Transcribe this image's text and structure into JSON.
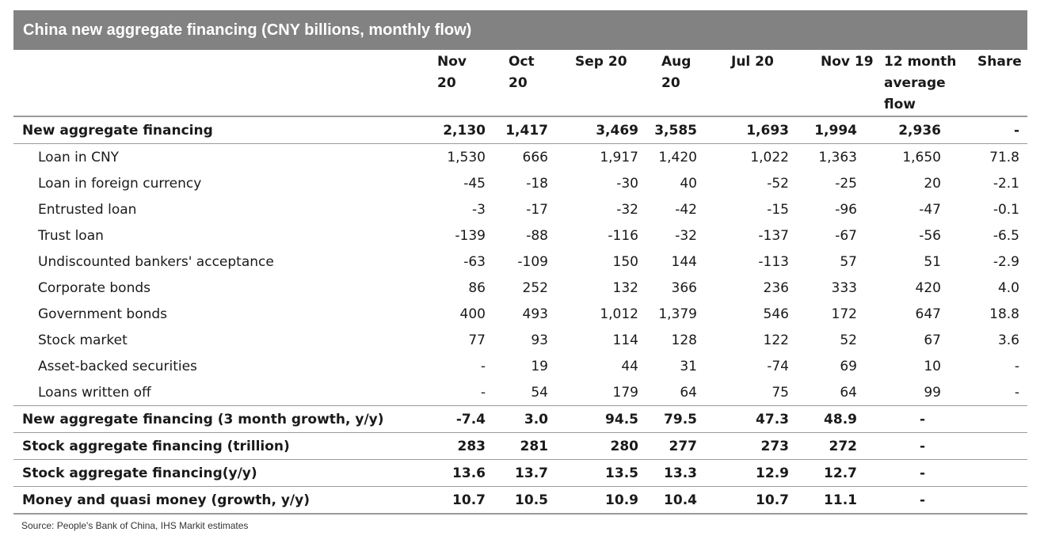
{
  "title": "China new aggregate financing (CNY billions, monthly flow)",
  "columns": [
    {
      "line1": "Nov",
      "line2": "20",
      "line3": ""
    },
    {
      "line1": "Oct",
      "line2": "20",
      "line3": ""
    },
    {
      "line1": "Sep 20",
      "line2": "",
      "line3": ""
    },
    {
      "line1": "Aug",
      "line2": "20",
      "line3": ""
    },
    {
      "line1": "Jul 20",
      "line2": "",
      "line3": ""
    },
    {
      "line1": "Nov 19",
      "line2": "",
      "line3": ""
    },
    {
      "line1": "12 month",
      "line2": "average",
      "line3": "flow"
    },
    {
      "line1": "Share",
      "line2": "",
      "line3": ""
    }
  ],
  "rows": [
    {
      "label": "New aggregate financing",
      "values": [
        "2,130",
        "1,417",
        "3,469",
        "3,585",
        "1,693",
        "1,994",
        "2,936",
        "-"
      ]
    },
    {
      "label": "Loan in CNY",
      "values": [
        "1,530",
        "666",
        "1,917",
        "1,420",
        "1,022",
        "1,363",
        "1,650",
        "71.8"
      ]
    },
    {
      "label": "Loan in foreign currency",
      "values": [
        "-45",
        "-18",
        "-30",
        "40",
        "-52",
        "-25",
        "20",
        "-2.1"
      ]
    },
    {
      "label": "Entrusted loan",
      "values": [
        "-3",
        "-17",
        "-32",
        "-42",
        "-15",
        "-96",
        "-47",
        "-0.1"
      ]
    },
    {
      "label": "Trust loan",
      "values": [
        "-139",
        "-88",
        "-116",
        "-32",
        "-137",
        "-67",
        "-56",
        "-6.5"
      ]
    },
    {
      "label": "Undiscounted bankers' acceptance",
      "values": [
        "-63",
        "-109",
        "150",
        "144",
        "-113",
        "57",
        "51",
        "-2.9"
      ]
    },
    {
      "label": "Corporate bonds",
      "values": [
        "86",
        "252",
        "132",
        "366",
        "236",
        "333",
        "420",
        "4.0"
      ]
    },
    {
      "label": "Government bonds",
      "values": [
        "400",
        "493",
        "1,012",
        "1,379",
        "546",
        "172",
        "647",
        "18.8"
      ]
    },
    {
      "label": "Stock market",
      "values": [
        "77",
        "93",
        "114",
        "128",
        "122",
        "52",
        "67",
        "3.6"
      ]
    },
    {
      "label": "Asset-backed securities",
      "values": [
        "-",
        "19",
        "44",
        "31",
        "-74",
        "69",
        "10",
        "-"
      ]
    },
    {
      "label": "Loans written off",
      "values": [
        "-",
        "54",
        "179",
        "64",
        "75",
        "64",
        "99",
        "-"
      ]
    },
    {
      "label": "New aggregate financing (3 month growth, y/y)",
      "values": [
        "-7.4",
        "3.0",
        "94.5",
        "79.5",
        "47.3",
        "48.9",
        "-",
        ""
      ]
    },
    {
      "label": "Stock aggregate financing (trillion)",
      "values": [
        "283",
        "281",
        "280",
        "277",
        "273",
        "272",
        "-",
        ""
      ]
    },
    {
      "label": "Stock aggregate financing(y/y)",
      "values": [
        "13.6",
        "13.7",
        "13.5",
        "13.3",
        "12.9",
        "12.7",
        "-",
        ""
      ]
    },
    {
      "label": "Money and quasi money (growth, y/y)",
      "values": [
        "10.7",
        "10.5",
        "10.9",
        "10.4",
        "10.7",
        "11.1",
        "-",
        ""
      ]
    }
  ],
  "source": "Source: People's Bank of China, IHS Markit estimates"
}
